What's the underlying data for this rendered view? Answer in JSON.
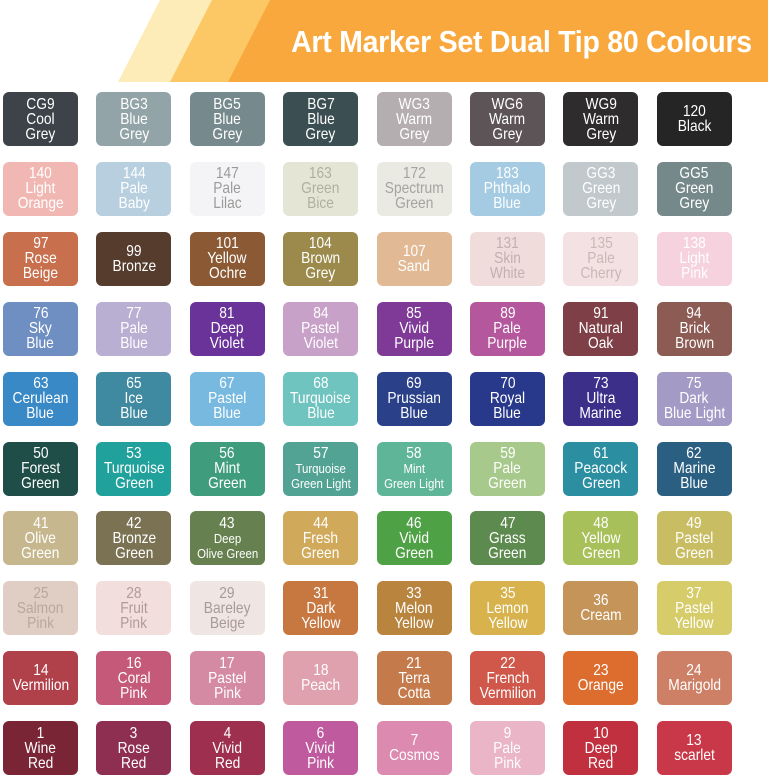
{
  "header": {
    "title": "Art Marker Set Dual Tip 80 Colours",
    "colors": {
      "pale": "#fdebb8",
      "light": "#fcc865",
      "main": "#f9a83e"
    }
  },
  "swatches": [
    [
      {
        "code": "CG9",
        "lines": [
          "Cool",
          "Grey"
        ],
        "bg": "#3d4349",
        "fg": "#ffffff"
      },
      {
        "code": "BG3",
        "lines": [
          "Blue",
          "Grey"
        ],
        "bg": "#93a4a8",
        "fg": "#ffffff"
      },
      {
        "code": "BG5",
        "lines": [
          "Blue",
          "Grey"
        ],
        "bg": "#768a8e",
        "fg": "#ffffff"
      },
      {
        "code": "BG7",
        "lines": [
          "Blue",
          "Grey"
        ],
        "bg": "#3b4e52",
        "fg": "#ffffff"
      },
      {
        "code": "WG3",
        "lines": [
          "Warm",
          "Grey"
        ],
        "bg": "#b5aeb1",
        "fg": "#ffffff"
      },
      {
        "code": "WG6",
        "lines": [
          "Warm",
          "Grey"
        ],
        "bg": "#5d5457",
        "fg": "#ffffff"
      },
      {
        "code": "WG9",
        "lines": [
          "Warm",
          "Grey"
        ],
        "bg": "#2e2c2d",
        "fg": "#ffffff"
      },
      {
        "code": "120",
        "lines": [
          "Black"
        ],
        "bg": "#252525",
        "fg": "#ffffff"
      }
    ],
    [
      {
        "code": "140",
        "lines": [
          "Light",
          "Orange"
        ],
        "bg": "#f1b8b3",
        "fg": "#ffffff"
      },
      {
        "code": "144",
        "lines": [
          "Pale",
          "Baby"
        ],
        "bg": "#b8cfe0",
        "fg": "#ffffff"
      },
      {
        "code": "147",
        "lines": [
          "Pale",
          "Lilac"
        ],
        "bg": "#f4f4f6",
        "fg": "#9a9a9a"
      },
      {
        "code": "163",
        "lines": [
          "Green",
          "Bice"
        ],
        "bg": "#e4e5d5",
        "fg": "#b0b0a0"
      },
      {
        "code": "172",
        "lines": [
          "Spectrum",
          "Green"
        ],
        "bg": "#eaeae2",
        "fg": "#a4a4a0"
      },
      {
        "code": "183",
        "lines": [
          "Phthalo",
          "Blue"
        ],
        "bg": "#a4cbe2",
        "fg": "#ffffff"
      },
      {
        "code": "GG3",
        "lines": [
          "Green",
          "Grey"
        ],
        "bg": "#c1c9cc",
        "fg": "#ffffff"
      },
      {
        "code": "GG5",
        "lines": [
          "Green",
          "Grey"
        ],
        "bg": "#76898a",
        "fg": "#ffffff"
      }
    ],
    [
      {
        "code": "97",
        "lines": [
          "Rose",
          "Beige"
        ],
        "bg": "#c8704e",
        "fg": "#ffffff"
      },
      {
        "code": "99",
        "lines": [
          "Bronze"
        ],
        "bg": "#553c2c",
        "fg": "#ffffff"
      },
      {
        "code": "101",
        "lines": [
          "Yellow",
          "Ochre"
        ],
        "bg": "#8b5a34",
        "fg": "#ffffff"
      },
      {
        "code": "104",
        "lines": [
          "Brown",
          "Grey"
        ],
        "bg": "#9b8a4b",
        "fg": "#ffffff"
      },
      {
        "code": "107",
        "lines": [
          "Sand"
        ],
        "bg": "#e2b995",
        "fg": "#ffffff"
      },
      {
        "code": "131",
        "lines": [
          "Skin",
          "White"
        ],
        "bg": "#f1dcdc",
        "fg": "#c0b0b0"
      },
      {
        "code": "135",
        "lines": [
          "Pale",
          "Cherry"
        ],
        "bg": "#f4e1e3",
        "fg": "#c8b8b8"
      },
      {
        "code": "138",
        "lines": [
          "Light",
          "Pink"
        ],
        "bg": "#f6d2df",
        "fg": "#ffffff"
      }
    ],
    [
      {
        "code": "76",
        "lines": [
          "Sky",
          "Blue"
        ],
        "bg": "#6f8fc3",
        "fg": "#ffffff"
      },
      {
        "code": "77",
        "lines": [
          "Pale",
          "Blue"
        ],
        "bg": "#b8afd3",
        "fg": "#ffffff"
      },
      {
        "code": "81",
        "lines": [
          "Deep",
          "Violet"
        ],
        "bg": "#6a339a",
        "fg": "#ffffff"
      },
      {
        "code": "84",
        "lines": [
          "Pastel",
          "Violet"
        ],
        "bg": "#c8a1c9",
        "fg": "#ffffff"
      },
      {
        "code": "85",
        "lines": [
          "Vivid",
          "Purple"
        ],
        "bg": "#7f3a98",
        "fg": "#ffffff"
      },
      {
        "code": "89",
        "lines": [
          "Pale",
          "Purple"
        ],
        "bg": "#b4579d",
        "fg": "#ffffff"
      },
      {
        "code": "91",
        "lines": [
          "Natural",
          "Oak"
        ],
        "bg": "#7e3f47",
        "fg": "#ffffff"
      },
      {
        "code": "94",
        "lines": [
          "Brick",
          "Brown"
        ],
        "bg": "#8b5b54",
        "fg": "#ffffff"
      }
    ],
    [
      {
        "code": "63",
        "lines": [
          "Cerulean",
          "Blue"
        ],
        "bg": "#3889c6",
        "fg": "#ffffff"
      },
      {
        "code": "65",
        "lines": [
          "Ice",
          "Blue"
        ],
        "bg": "#3f8aa1",
        "fg": "#ffffff"
      },
      {
        "code": "67",
        "lines": [
          "Pastel",
          "Blue"
        ],
        "bg": "#78b9e0",
        "fg": "#ffffff"
      },
      {
        "code": "68",
        "lines": [
          "Turquoise",
          "Blue"
        ],
        "bg": "#6fc4c0",
        "fg": "#ffffff"
      },
      {
        "code": "69",
        "lines": [
          "Prussian",
          "Blue"
        ],
        "bg": "#2a4189",
        "fg": "#ffffff"
      },
      {
        "code": "70",
        "lines": [
          "Royal",
          "Blue"
        ],
        "bg": "#28388a",
        "fg": "#ffffff"
      },
      {
        "code": "73",
        "lines": [
          "Ultra",
          "Marine"
        ],
        "bg": "#3b2f8a",
        "fg": "#ffffff"
      },
      {
        "code": "75",
        "lines": [
          "Dark",
          "Blue Light"
        ],
        "bg": "#a39ac6",
        "fg": "#ffffff"
      }
    ],
    [
      {
        "code": "50",
        "lines": [
          "Forest",
          "Green"
        ],
        "bg": "#1e4e47",
        "fg": "#ffffff"
      },
      {
        "code": "53",
        "lines": [
          "Turquoise",
          "Green"
        ],
        "bg": "#21a19c",
        "fg": "#ffffff"
      },
      {
        "code": "56",
        "lines": [
          "Mint",
          "Green"
        ],
        "bg": "#3f9d7d",
        "fg": "#ffffff"
      },
      {
        "code": "57",
        "lines": [
          "Turquoise",
          "Green Light"
        ],
        "bg": "#52a394",
        "fg": "#ffffff",
        "small": true
      },
      {
        "code": "58",
        "lines": [
          "Mint",
          "Green Light"
        ],
        "bg": "#5fb598",
        "fg": "#ffffff",
        "small": true
      },
      {
        "code": "59",
        "lines": [
          "Pale",
          "Green"
        ],
        "bg": "#a7c98b",
        "fg": "#ffffff"
      },
      {
        "code": "61",
        "lines": [
          "Peacock",
          "Green"
        ],
        "bg": "#2c8ea1",
        "fg": "#ffffff"
      },
      {
        "code": "62",
        "lines": [
          "Marine",
          "Blue"
        ],
        "bg": "#2b5f82",
        "fg": "#ffffff"
      }
    ],
    [
      {
        "code": "41",
        "lines": [
          "Olive",
          "Green"
        ],
        "bg": "#c6b78e",
        "fg": "#ffffff"
      },
      {
        "code": "42",
        "lines": [
          "Bronze",
          "Green"
        ],
        "bg": "#7a7252",
        "fg": "#ffffff"
      },
      {
        "code": "43",
        "lines": [
          "Deep",
          "Olive Green"
        ],
        "bg": "#66804f",
        "fg": "#ffffff",
        "small": true
      },
      {
        "code": "44",
        "lines": [
          "Fresh",
          "Green"
        ],
        "bg": "#d0a95a",
        "fg": "#ffffff"
      },
      {
        "code": "46",
        "lines": [
          "Vivid",
          "Green"
        ],
        "bg": "#4fa145",
        "fg": "#ffffff"
      },
      {
        "code": "47",
        "lines": [
          "Grass",
          "Green"
        ],
        "bg": "#5d8a4e",
        "fg": "#ffffff"
      },
      {
        "code": "48",
        "lines": [
          "Yellow",
          "Green"
        ],
        "bg": "#a7c059",
        "fg": "#ffffff"
      },
      {
        "code": "49",
        "lines": [
          "Pastel",
          "Green"
        ],
        "bg": "#c9bd63",
        "fg": "#ffffff"
      }
    ],
    [
      {
        "code": "25",
        "lines": [
          "Salmon",
          "Pink"
        ],
        "bg": "#e0cdc4",
        "fg": "#b8a8a0"
      },
      {
        "code": "28",
        "lines": [
          "Fruit",
          "Pink"
        ],
        "bg": "#f3dede",
        "fg": "#b09a9a"
      },
      {
        "code": "29",
        "lines": [
          "Bareley",
          "Beige"
        ],
        "bg": "#efe5e2",
        "fg": "#a89a98"
      },
      {
        "code": "31",
        "lines": [
          "Dark",
          "Yellow"
        ],
        "bg": "#c67840",
        "fg": "#ffffff"
      },
      {
        "code": "33",
        "lines": [
          "Melon",
          "Yellow"
        ],
        "bg": "#b8843e",
        "fg": "#ffffff"
      },
      {
        "code": "35",
        "lines": [
          "Lemon",
          "Yellow"
        ],
        "bg": "#d8b24c",
        "fg": "#ffffff"
      },
      {
        "code": "36",
        "lines": [
          "Cream"
        ],
        "bg": "#c49458",
        "fg": "#ffffff"
      },
      {
        "code": "37",
        "lines": [
          "Pastel",
          "Yellow"
        ],
        "bg": "#d7cc6a",
        "fg": "#ffffff"
      }
    ],
    [
      {
        "code": "14",
        "lines": [
          "Vermilion"
        ],
        "bg": "#b0404a",
        "fg": "#ffffff"
      },
      {
        "code": "16",
        "lines": [
          "Coral",
          "Pink"
        ],
        "bg": "#c4597a",
        "fg": "#ffffff"
      },
      {
        "code": "17",
        "lines": [
          "Pastel",
          "Pink"
        ],
        "bg": "#d48aa3",
        "fg": "#ffffff"
      },
      {
        "code": "18",
        "lines": [
          "Peach"
        ],
        "bg": "#dfa1ad",
        "fg": "#ffffff"
      },
      {
        "code": "21",
        "lines": [
          "Terra",
          "Cotta"
        ],
        "bg": "#c47a4a",
        "fg": "#ffffff"
      },
      {
        "code": "22",
        "lines": [
          "French",
          "Vermilion"
        ],
        "bg": "#d0584a",
        "fg": "#ffffff"
      },
      {
        "code": "23",
        "lines": [
          "Orange"
        ],
        "bg": "#dc6d2e",
        "fg": "#ffffff"
      },
      {
        "code": "24",
        "lines": [
          "Marigold"
        ],
        "bg": "#cd8065",
        "fg": "#ffffff"
      }
    ],
    [
      {
        "code": "1",
        "lines": [
          "Wine",
          "Red"
        ],
        "bg": "#7a2536",
        "fg": "#ffffff"
      },
      {
        "code": "3",
        "lines": [
          "Rose",
          "Red"
        ],
        "bg": "#8e2f52",
        "fg": "#ffffff"
      },
      {
        "code": "4",
        "lines": [
          "Vivid",
          "Red"
        ],
        "bg": "#9e2f4e",
        "fg": "#ffffff"
      },
      {
        "code": "6",
        "lines": [
          "Vivid",
          "Pink"
        ],
        "bg": "#c05a9e",
        "fg": "#ffffff"
      },
      {
        "code": "7",
        "lines": [
          "Cosmos"
        ],
        "bg": "#dd8ab0",
        "fg": "#ffffff"
      },
      {
        "code": "9",
        "lines": [
          "Pale",
          "Pink"
        ],
        "bg": "#eab5c7",
        "fg": "#ffffff"
      },
      {
        "code": "10",
        "lines": [
          "Deep",
          "Red"
        ],
        "bg": "#c0303e",
        "fg": "#ffffff"
      },
      {
        "code": "13",
        "lines": [
          "scarlet"
        ],
        "bg": "#c83848",
        "fg": "#ffffff"
      }
    ]
  ]
}
